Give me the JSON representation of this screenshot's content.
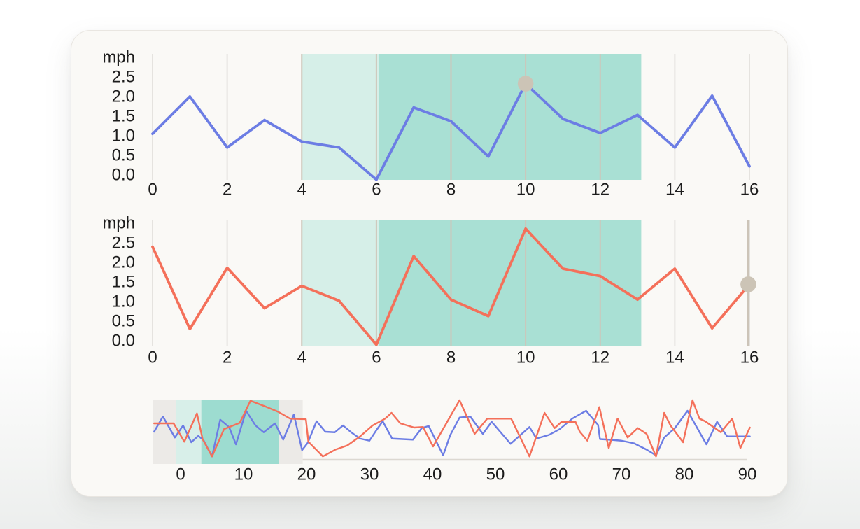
{
  "colors": {
    "blue": "#6c7de4",
    "orange": "#f4705a",
    "zone_light": "#d6efe8",
    "zone_dark": "#a9e0d4",
    "mini_zone_light": "#d8efe9",
    "mini_zone_dark": "#9ddcd0",
    "brush": "#eceae7",
    "grid": "#e5e3df",
    "grid_tan": "#cec5b9",
    "cursor_line": "#ccc4b8",
    "cursor_dot": "#ccc4b6",
    "axis_line": "#dcd8d1",
    "text": "#1c1c1c",
    "card_bg": "#faf9f6"
  },
  "chart_data": [
    {
      "id": "speed-top",
      "type": "line",
      "title": "",
      "ylabel": "mph",
      "xlabel": "",
      "xdomain": [
        0,
        16
      ],
      "ylim": [
        -0.13,
        3.1
      ],
      "grid": "vertical-only",
      "xticks": [
        0,
        2,
        4,
        6,
        8,
        10,
        12,
        14,
        16
      ],
      "ytick_labels": [
        "2.5",
        "2.0",
        "1.5",
        "1.0",
        "0.5",
        "0.0"
      ],
      "ytick_values": [
        2.5,
        2.0,
        1.5,
        1.0,
        0.5,
        0.0
      ],
      "x": [
        0,
        1,
        2,
        3,
        4,
        5,
        6,
        7,
        8,
        9,
        10,
        11,
        12,
        13,
        14,
        15,
        16
      ],
      "series": [
        {
          "name": "speed-series-blue",
          "color": "blue",
          "values": [
            1.05,
            2.0,
            0.7,
            1.4,
            0.85,
            0.7,
            -0.12,
            1.72,
            1.37,
            0.47,
            2.33,
            1.43,
            1.07,
            1.53,
            0.7,
            2.02,
            0.22
          ]
        }
      ],
      "regions": [
        {
          "name": "zone-light",
          "color": "zone_light",
          "from": 4,
          "to": 6.07
        },
        {
          "name": "zone-dark",
          "color": "zone_dark",
          "from": 6.07,
          "to": 13.1
        }
      ],
      "cursor": {
        "x": 10,
        "value": 2.33,
        "show_line": false
      }
    },
    {
      "id": "speed-middle",
      "type": "line",
      "title": "",
      "ylabel": "mph",
      "xlabel": "",
      "xdomain": [
        0,
        16
      ],
      "ylim": [
        -0.13,
        3.07
      ],
      "grid": "vertical-only",
      "xticks": [
        0,
        2,
        4,
        6,
        8,
        10,
        12,
        14,
        16
      ],
      "ytick_labels": [
        "2.5",
        "2.0",
        "1.5",
        "1.0",
        "0.5",
        "0.0"
      ],
      "ytick_values": [
        2.5,
        2.0,
        1.5,
        1.0,
        0.5,
        0.0
      ],
      "x": [
        0,
        1,
        2,
        3,
        4,
        5,
        6,
        7,
        8,
        9,
        10,
        11,
        12,
        13,
        14,
        15,
        16
      ],
      "series": [
        {
          "name": "speed-series-orange",
          "color": "orange",
          "values": [
            2.4,
            0.3,
            1.86,
            0.83,
            1.4,
            1.02,
            -0.1,
            2.16,
            1.05,
            0.63,
            2.86,
            1.84,
            1.65,
            1.05,
            1.84,
            0.32,
            1.44
          ]
        }
      ],
      "regions": [
        {
          "name": "zone-light",
          "color": "zone_light",
          "from": 4,
          "to": 6.07
        },
        {
          "name": "zone-dark",
          "color": "zone_dark",
          "from": 6.07,
          "to": 13.1
        }
      ],
      "cursor": {
        "x": 15.97,
        "value": 1.44,
        "show_line": true
      }
    },
    {
      "id": "overview",
      "type": "line",
      "title": "",
      "ylabel": "",
      "xlabel": "",
      "xdomain": [
        -4.4,
        91
      ],
      "ylim": [
        -0.1,
        1.1
      ],
      "grid": "none",
      "xticks": [
        0,
        10,
        20,
        30,
        40,
        50,
        60,
        70,
        80,
        90
      ],
      "brush": {
        "from": -4.4,
        "to": 19.4
      },
      "regions": [
        {
          "name": "zone-light",
          "color": "mini_zone_light",
          "from": -0.7,
          "to": 3.3
        },
        {
          "name": "zone-dark",
          "color": "mini_zone_dark",
          "from": 3.3,
          "to": 15.6
        }
      ],
      "series": [
        {
          "name": "overview-series-blue",
          "color": "blue",
          "points": [
            [
              -4.2,
              0.44
            ],
            [
              -2.8,
              0.73
            ],
            [
              -0.9,
              0.33
            ],
            [
              0.4,
              0.56
            ],
            [
              1.7,
              0.24
            ],
            [
              2.8,
              0.36
            ],
            [
              3.6,
              0.29
            ],
            [
              5.0,
              -0.03
            ],
            [
              6.3,
              0.67
            ],
            [
              7.7,
              0.53
            ],
            [
              8.8,
              0.2
            ],
            [
              10.4,
              0.84
            ],
            [
              11.9,
              0.56
            ],
            [
              13.2,
              0.43
            ],
            [
              15.0,
              0.6
            ],
            [
              16.3,
              0.29
            ],
            [
              18.0,
              0.77
            ],
            [
              19.3,
              0.09
            ],
            [
              20.2,
              0.23
            ],
            [
              21.6,
              0.64
            ],
            [
              23.0,
              0.44
            ],
            [
              24.5,
              0.43
            ],
            [
              25.8,
              0.56
            ],
            [
              27.1,
              0.43
            ],
            [
              28.5,
              0.31
            ],
            [
              30.0,
              0.27
            ],
            [
              31.1,
              0.47
            ],
            [
              32.1,
              0.64
            ],
            [
              33.6,
              0.31
            ],
            [
              36.9,
              0.29
            ],
            [
              38.3,
              0.51
            ],
            [
              39.4,
              0.55
            ],
            [
              41.7,
              -0.01
            ],
            [
              42.8,
              0.37
            ],
            [
              44.3,
              0.71
            ],
            [
              46.0,
              0.73
            ],
            [
              48.0,
              0.4
            ],
            [
              49.4,
              0.63
            ],
            [
              52.4,
              0.21
            ],
            [
              55.4,
              0.53
            ],
            [
              56.5,
              0.31
            ],
            [
              58.5,
              0.38
            ],
            [
              60.2,
              0.49
            ],
            [
              62.2,
              0.69
            ],
            [
              64.4,
              0.84
            ],
            [
              66.3,
              0.57
            ],
            [
              66.6,
              0.3
            ],
            [
              68.0,
              0.29
            ],
            [
              70.0,
              0.27
            ],
            [
              72.0,
              0.22
            ],
            [
              74.0,
              0.1
            ],
            [
              75.5,
              -0.01
            ],
            [
              76.8,
              0.33
            ],
            [
              78.5,
              0.51
            ],
            [
              80.5,
              0.84
            ],
            [
              83.5,
              0.2
            ],
            [
              85.2,
              0.63
            ],
            [
              86.8,
              0.35
            ],
            [
              88.3,
              0.35
            ],
            [
              90.4,
              0.35
            ]
          ]
        },
        {
          "name": "overview-series-orange",
          "color": "orange",
          "points": [
            [
              -4.2,
              0.6
            ],
            [
              -1.1,
              0.6
            ],
            [
              0.6,
              0.25
            ],
            [
              2.6,
              0.79
            ],
            [
              3.5,
              0.3
            ],
            [
              5.0,
              -0.03
            ],
            [
              6.9,
              0.49
            ],
            [
              9.4,
              0.61
            ],
            [
              11.1,
              1.03
            ],
            [
              13.5,
              0.92
            ],
            [
              15.5,
              0.82
            ],
            [
              17.4,
              0.69
            ],
            [
              19.9,
              0.68
            ],
            [
              20.3,
              0.25
            ],
            [
              22.6,
              -0.03
            ],
            [
              24.6,
              0.1
            ],
            [
              26.5,
              0.18
            ],
            [
              28.5,
              0.35
            ],
            [
              30.5,
              0.56
            ],
            [
              32.5,
              0.69
            ],
            [
              33.5,
              0.8
            ],
            [
              34.9,
              0.6
            ],
            [
              37.1,
              0.52
            ],
            [
              38.5,
              0.53
            ],
            [
              40.1,
              0.16
            ],
            [
              42.2,
              0.6
            ],
            [
              44.3,
              1.04
            ],
            [
              46.7,
              0.4
            ],
            [
              48.7,
              0.69
            ],
            [
              52.5,
              0.69
            ],
            [
              55.4,
              -0.03
            ],
            [
              57.8,
              0.8
            ],
            [
              59.4,
              0.51
            ],
            [
              60.5,
              0.63
            ],
            [
              62.7,
              0.63
            ],
            [
              63.4,
              0.44
            ],
            [
              64.6,
              0.27
            ],
            [
              66.5,
              0.91
            ],
            [
              68.0,
              0.13
            ],
            [
              69.4,
              0.69
            ],
            [
              71.0,
              0.33
            ],
            [
              72.6,
              0.51
            ],
            [
              74.0,
              0.4
            ],
            [
              75.5,
              -0.03
            ],
            [
              76.8,
              0.8
            ],
            [
              77.8,
              0.56
            ],
            [
              79.8,
              0.24
            ],
            [
              81.3,
              1.04
            ],
            [
              82.4,
              0.69
            ],
            [
              83.3,
              0.64
            ],
            [
              85.8,
              0.43
            ],
            [
              87.6,
              0.69
            ],
            [
              88.9,
              0.13
            ],
            [
              90.4,
              0.52
            ]
          ]
        }
      ]
    }
  ]
}
